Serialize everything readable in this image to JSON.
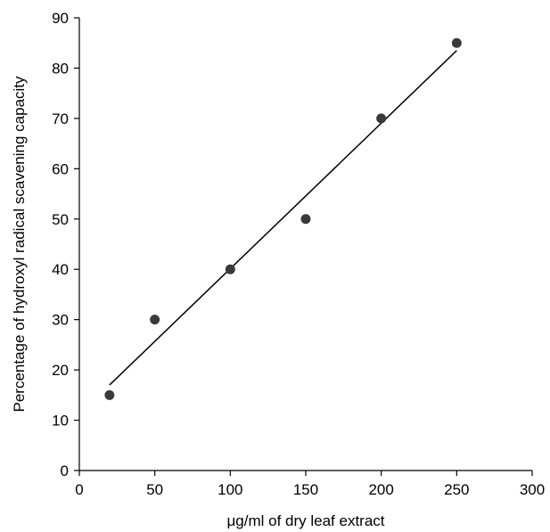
{
  "chart_data": {
    "type": "scatter",
    "title": "",
    "xlabel": "μg/ml of dry leaf extract",
    "ylabel": "Percentage of hydroxyl radical scavening capacity",
    "xlim": [
      0,
      300
    ],
    "ylim": [
      0,
      90
    ],
    "x_ticks": [
      0,
      50,
      100,
      150,
      200,
      250,
      300
    ],
    "y_ticks": [
      0,
      10,
      20,
      30,
      40,
      50,
      60,
      70,
      80,
      90
    ],
    "grid": false,
    "legend": "none",
    "series": [
      {
        "points": [
          {
            "x": 20,
            "y": 15
          },
          {
            "x": 50,
            "y": 30
          },
          {
            "x": 100,
            "y": 40
          },
          {
            "x": 150,
            "y": 50
          },
          {
            "x": 200,
            "y": 70
          },
          {
            "x": 250,
            "y": 85
          }
        ],
        "color": "#3a3a3a"
      }
    ],
    "trendline": {
      "type": "linear",
      "x_start": 20,
      "y_start": 17,
      "x_end": 250,
      "y_end": 83.5,
      "color": "#000000"
    }
  }
}
